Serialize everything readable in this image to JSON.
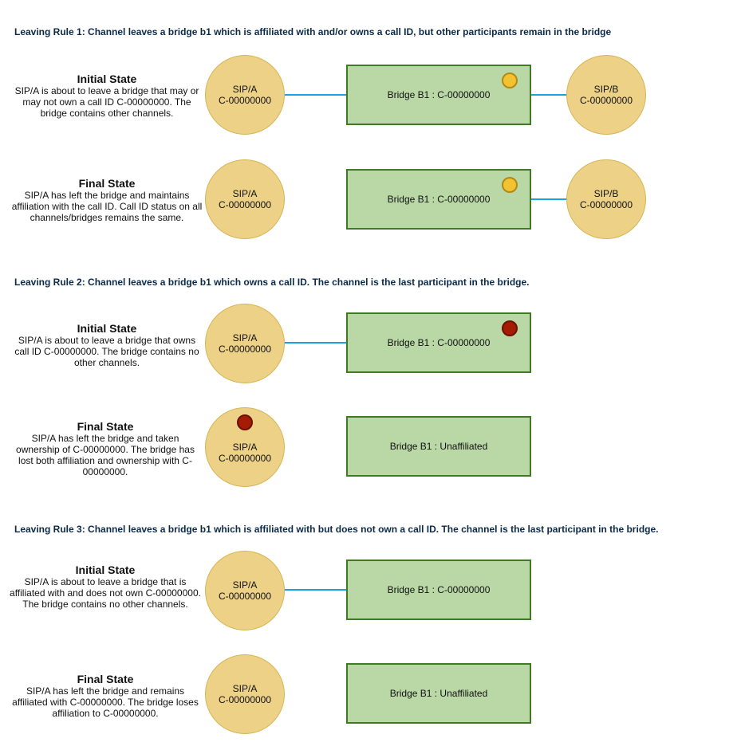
{
  "rules": [
    {
      "heading": "Leaving Rule 1: Channel leaves a bridge b1 which is affiliated with and/or owns a call ID, but other participants remain in the bridge",
      "initial": {
        "title": "Initial State",
        "desc": "SIP/A is about to leave a bridge that may or may not own a call ID C-00000000. The bridge contains other channels.",
        "channel_a": {
          "name": "SIP/A",
          "id": "C-00000000"
        },
        "bridge": "Bridge B1 :  C-00000000",
        "channel_b": {
          "name": "SIP/B",
          "id": "C-00000000"
        }
      },
      "final": {
        "title": "Final State",
        "desc": "SIP/A has left the bridge and maintains affiliation with the call ID. Call ID status on all channels/bridges remains the same.",
        "channel_a": {
          "name": "SIP/A",
          "id": "C-00000000"
        },
        "bridge": "Bridge B1 :  C-00000000",
        "channel_b": {
          "name": "SIP/B",
          "id": "C-00000000"
        }
      }
    },
    {
      "heading": "Leaving Rule 2: Channel leaves a bridge b1 which owns a call ID. The channel is the last participant in the bridge.",
      "initial": {
        "title": "Initial State",
        "desc": "SIP/A is about to leave a bridge that owns call ID C-00000000. The bridge contains no other channels.",
        "channel_a": {
          "name": "SIP/A",
          "id": "C-00000000"
        },
        "bridge": "Bridge B1 :  C-00000000"
      },
      "final": {
        "title": "Final State",
        "desc": "SIP/A has left the bridge and taken ownership of C-00000000. The bridge has lost both affiliation and ownership with C-00000000.",
        "channel_a": {
          "name": "SIP/A",
          "id": "C-00000000"
        },
        "bridge": "Bridge B1 : Unaffiliated"
      }
    },
    {
      "heading": "Leaving Rule 3: Channel leaves a bridge b1 which is affiliated with but does not own a call ID. The channel is the last participant in the bridge.",
      "initial": {
        "title": "Initial State",
        "desc": "SIP/A is about to leave a bridge that is affiliated with and does not own C-00000000. The bridge contains no other channels.",
        "channel_a": {
          "name": "SIP/A",
          "id": "C-00000000"
        },
        "bridge": "Bridge B1 :  C-00000000"
      },
      "final": {
        "title": "Final State",
        "desc": "SIP/A has left the bridge and remains affiliated with C-00000000. The bridge loses affiliation to C-00000000.",
        "channel_a": {
          "name": "SIP/A",
          "id": "C-00000000"
        },
        "bridge": "Bridge B1 :  Unaffiliated"
      }
    }
  ],
  "colors": {
    "channel_fill": "#ecd187",
    "bridge_fill": "#b9d8a6",
    "link": "#1ba1e2",
    "affiliation_marker": "#f2c230",
    "ownership_marker": "#a51c05"
  }
}
